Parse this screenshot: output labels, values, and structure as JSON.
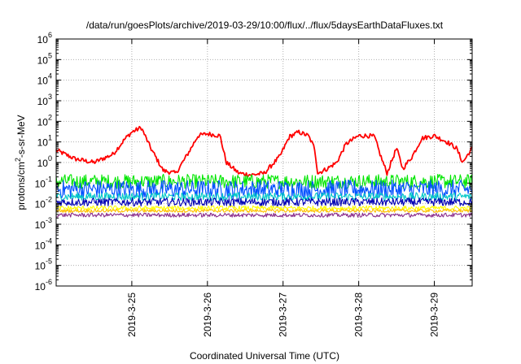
{
  "chart_data": {
    "type": "line",
    "title": "/data/run/goesPlots/archive/2019-03-29/10:00/flux/../flux/5daysEarthDataFluxes.txt",
    "xlabel": "Coordinated Universal Time (UTC)",
    "ylabel": {
      "prefix": "protons/cm",
      "sup": "2",
      "suffix": "-s-sr-MeV"
    },
    "xlim": [
      "2019-03-24 00:00",
      "2019-03-29 12:00"
    ],
    "ylim": [
      1e-06,
      1000000.0
    ],
    "yscale": "log",
    "grid": true,
    "legend": "none",
    "x_ticks": [
      "2019-3-25",
      "2019-3-26",
      "2019-3-27",
      "2019-3-28",
      "2019-3-29"
    ],
    "y_ticks": [
      {
        "base": "10",
        "exp": "6"
      },
      {
        "base": "10",
        "exp": "5"
      },
      {
        "base": "10",
        "exp": "4"
      },
      {
        "base": "10",
        "exp": "3"
      },
      {
        "base": "10",
        "exp": "2"
      },
      {
        "base": "10",
        "exp": "1"
      },
      {
        "base": "10",
        "exp": "0"
      },
      {
        "base": "10",
        "exp": "-1"
      },
      {
        "base": "10",
        "exp": "-2"
      },
      {
        "base": "10",
        "exp": "-3"
      },
      {
        "base": "10",
        "exp": "-4"
      },
      {
        "base": "10",
        "exp": "-5"
      },
      {
        "base": "10",
        "exp": "-6"
      }
    ],
    "series": [
      {
        "color": "#ff0000",
        "x": [
          "2019-03-24 00:00",
          "2019-03-24 06:00",
          "2019-03-24 12:00",
          "2019-03-24 18:00",
          "2019-03-24 22:00",
          "2019-03-25 00:00",
          "2019-03-25 03:00",
          "2019-03-25 06:00",
          "2019-03-25 10:00",
          "2019-03-25 14:00",
          "2019-03-25 18:00",
          "2019-03-25 21:00",
          "2019-03-26 00:00",
          "2019-03-26 04:00",
          "2019-03-26 06:00",
          "2019-03-26 10:00",
          "2019-03-26 14:00",
          "2019-03-26 18:00",
          "2019-03-26 23:00",
          "2019-03-27 02:00",
          "2019-03-27 05:00",
          "2019-03-27 08:00",
          "2019-03-27 10:00",
          "2019-03-27 11:00",
          "2019-03-27 14:00",
          "2019-03-27 17:00",
          "2019-03-27 20:00",
          "2019-03-28 00:00",
          "2019-03-28 03:00",
          "2019-03-28 05:00",
          "2019-03-28 07:00",
          "2019-03-28 09:00",
          "2019-03-28 12:00",
          "2019-03-28 14:00",
          "2019-03-28 17:00",
          "2019-03-28 20:00",
          "2019-03-29 00:00",
          "2019-03-29 04:00",
          "2019-03-29 07:00",
          "2019-03-29 09:00",
          "2019-03-29 12:00"
        ],
        "y": [
          4,
          1.5,
          1,
          2.5,
          15,
          30,
          50,
          5,
          0.4,
          0.3,
          3,
          20,
          25,
          20,
          1,
          0.3,
          0.25,
          0.3,
          2,
          18,
          30,
          20,
          5,
          0.3,
          0.5,
          1,
          8,
          20,
          20,
          18,
          2,
          0.3,
          5,
          0.5,
          2,
          15,
          20,
          10,
          5,
          1,
          5
        ]
      },
      {
        "color": "#00e600",
        "level": 0.12,
        "spread": 0.35
      },
      {
        "color": "#0050ff",
        "level": 0.05,
        "spread": 0.45
      },
      {
        "color": "#00c8c8",
        "level": 0.022,
        "spread": 0.2
      },
      {
        "color": "#0000b4",
        "level": 0.012,
        "spread": 0.2
      },
      {
        "color": "#ffff00",
        "level": 0.006,
        "spread": 0.12
      },
      {
        "color": "#ffc000",
        "level": 0.0045,
        "spread": 0.08
      },
      {
        "color": "#8c2e8c",
        "level": 0.0028,
        "spread": 0.1
      }
    ]
  }
}
